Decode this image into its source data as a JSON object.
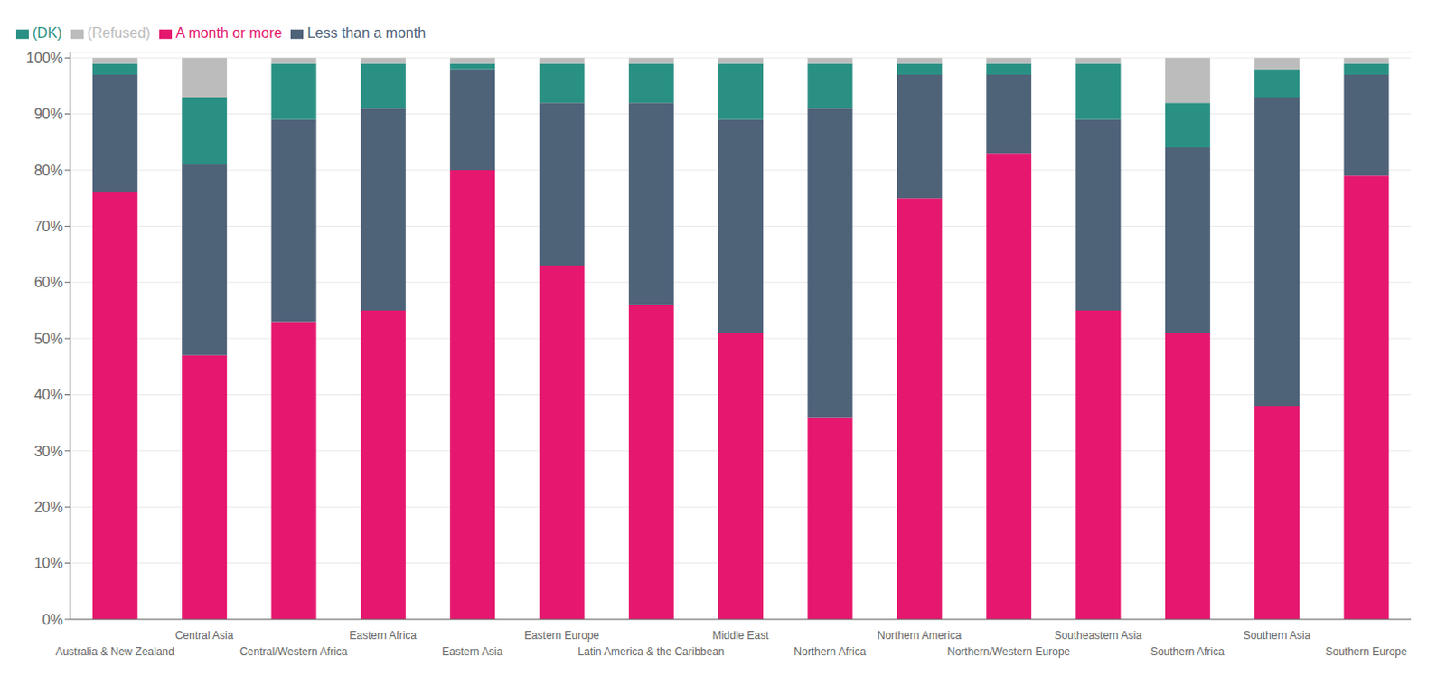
{
  "chart_data": {
    "type": "bar",
    "stacked": true,
    "categories": [
      "Australia & New Zealand",
      "Central Asia",
      "Central/Western Africa",
      "Eastern Africa",
      "Eastern Asia",
      "Eastern Europe",
      "Latin America & the Caribbean",
      "Middle East",
      "Northern Africa",
      "Northern America",
      "Northern/Western Europe",
      "Southeastern Asia",
      "Southern Africa",
      "Southern Asia",
      "Southern Europe"
    ],
    "series": [
      {
        "name": "A month or more",
        "color": "#E5176E",
        "values": [
          76,
          47,
          53,
          55,
          80,
          63,
          56,
          51,
          36,
          75,
          83,
          55,
          51,
          38,
          79
        ]
      },
      {
        "name": "Less than a month",
        "color": "#4E6278",
        "values": [
          21,
          34,
          36,
          36,
          18,
          29,
          36,
          38,
          55,
          22,
          14,
          34,
          33,
          55,
          18
        ]
      },
      {
        "name": "(DK)",
        "color": "#2A9084",
        "values": [
          2,
          12,
          10,
          8,
          1,
          7,
          7,
          10,
          8,
          2,
          2,
          10,
          8,
          5,
          2
        ]
      },
      {
        "name": "(Refused)",
        "color": "#BCBCBC",
        "values": [
          1,
          7,
          1,
          1,
          1,
          1,
          1,
          1,
          1,
          1,
          1,
          1,
          8,
          2,
          1
        ]
      }
    ],
    "ylim": [
      0,
      101
    ],
    "yticks": [
      {
        "value": 0,
        "label": "0%"
      },
      {
        "value": 10,
        "label": "10%"
      },
      {
        "value": 20,
        "label": "20%"
      },
      {
        "value": 30,
        "label": "30%"
      },
      {
        "value": 40,
        "label": "40%"
      },
      {
        "value": 50,
        "label": "50%"
      },
      {
        "value": 60,
        "label": "60%"
      },
      {
        "value": 70,
        "label": "70%"
      },
      {
        "value": 80,
        "label": "80%"
      },
      {
        "value": 90,
        "label": "90%"
      },
      {
        "value": 100,
        "label": "100%"
      }
    ],
    "grid": true,
    "legend": "top-left"
  }
}
